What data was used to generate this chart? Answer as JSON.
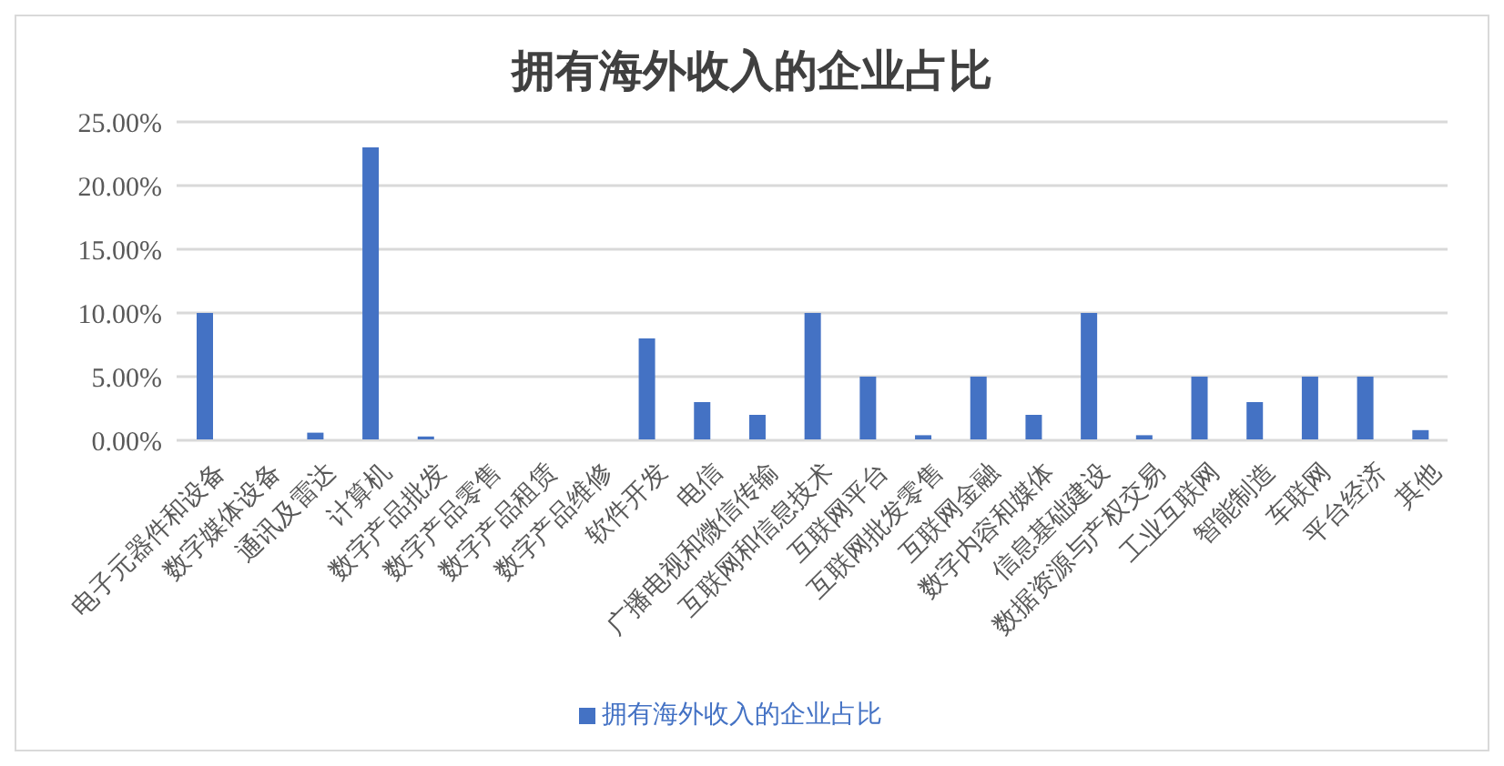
{
  "chart_data": {
    "type": "bar",
    "title": "拥有海外收入的企业占比",
    "categories": [
      "电子元器件和设备",
      "数字媒体设备",
      "通讯及雷达",
      "计算机",
      "数字产品批发",
      "数字产品零售",
      "数字产品租赁",
      "数字产品维修",
      "软件开发",
      "电信",
      "广播电视和微信传输",
      "互联网和信息技术",
      "互联网平台",
      "互联网批发零售",
      "互联网金融",
      "数字内容和媒体",
      "信息基础建设",
      "数据资源与产权交易",
      "工业互联网",
      "智能制造",
      "车联网",
      "平台经济",
      "其他"
    ],
    "series": [
      {
        "name": "拥有海外收入的企业占比",
        "color": "#4472c4",
        "values": [
          10,
          0,
          0.6,
          23,
          0.3,
          0,
          0,
          0,
          8,
          3,
          2,
          10,
          5,
          0.4,
          5,
          2,
          10,
          0.4,
          5,
          3,
          5,
          5,
          0.8
        ]
      }
    ],
    "ylim": [
      0,
      25
    ],
    "yticks": [
      {
        "value": 0,
        "label": "0.00%"
      },
      {
        "value": 5,
        "label": "5.00%"
      },
      {
        "value": 10,
        "label": "10.00%"
      },
      {
        "value": 15,
        "label": "15.00%"
      },
      {
        "value": 20,
        "label": "20.00%"
      },
      {
        "value": 25,
        "label": "25.00%"
      }
    ],
    "grid": "y",
    "legend": "bottom"
  }
}
